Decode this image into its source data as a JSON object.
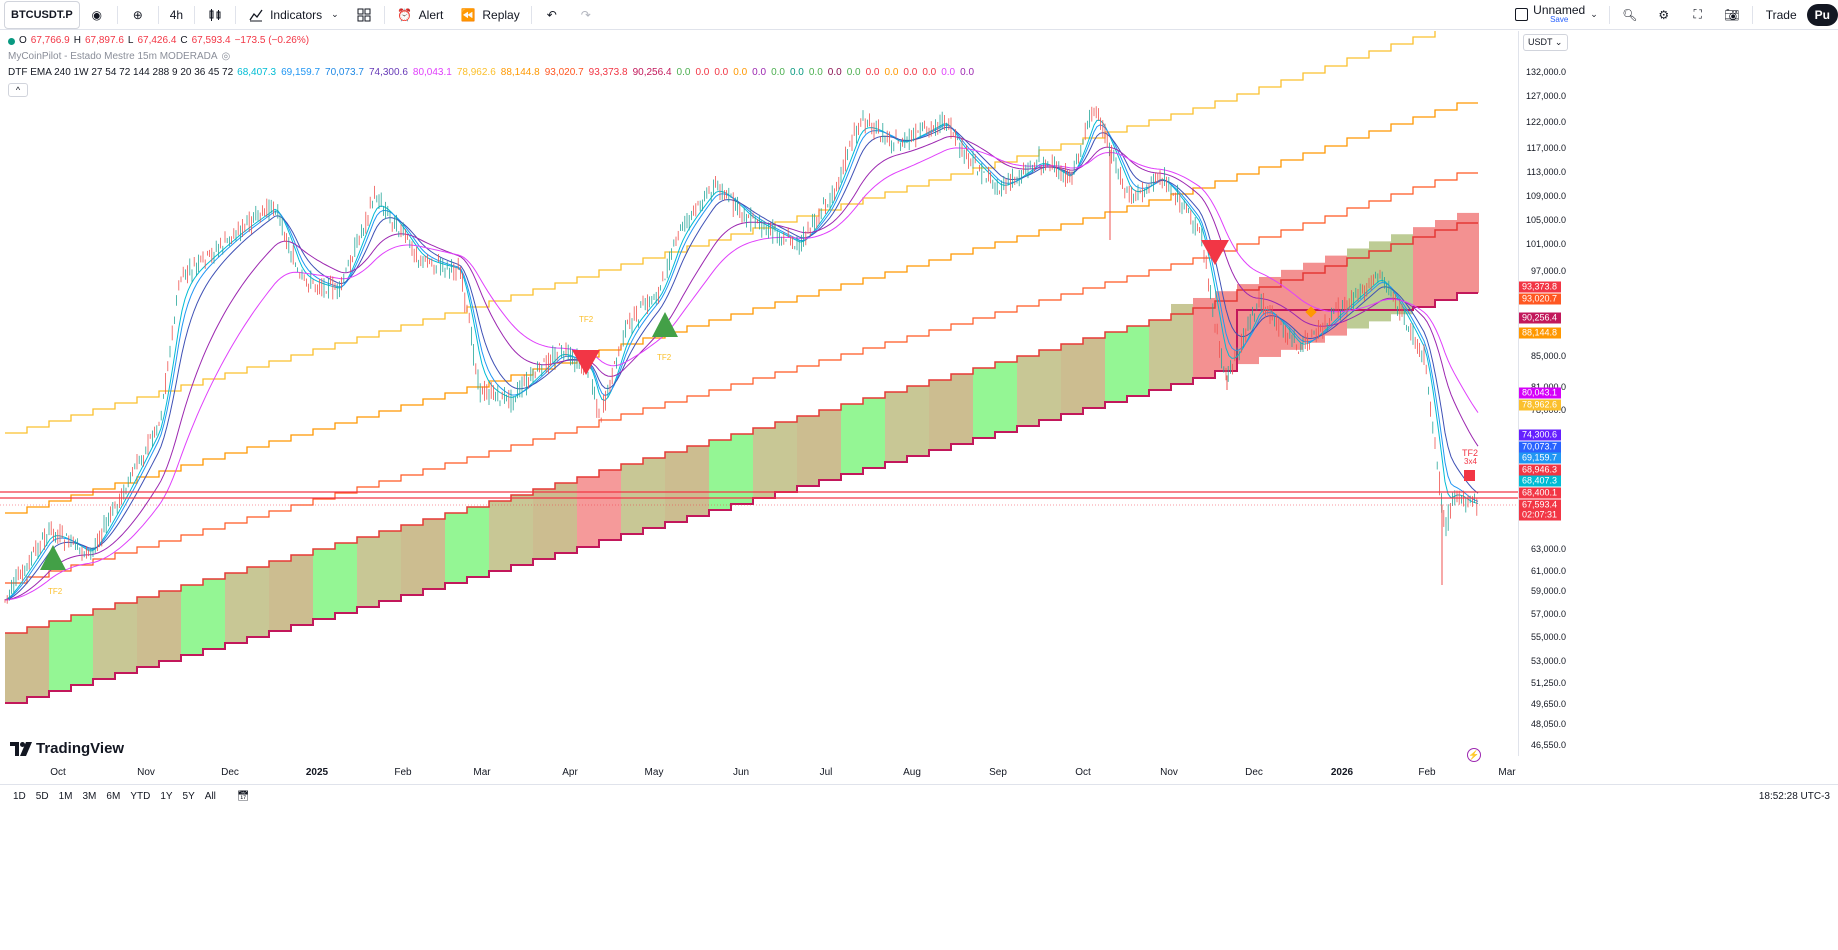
{
  "toolbar": {
    "symbol": "BTCUSDT.P",
    "interval": "4h",
    "indicators_label": "Indicators",
    "alert_label": "Alert",
    "replay_label": "Replay",
    "layout_name": "Unnamed",
    "layout_save": "Save",
    "trade_label": "Trade",
    "publish_label": "Pu"
  },
  "legend": {
    "ohlc": {
      "o_label": "O",
      "o": "67,766.9",
      "h_label": "H",
      "h": "67,897.6",
      "l_label": "L",
      "l": "67,426.4",
      "c_label": "C",
      "c": "67,593.4",
      "change": "−173.5 (−0.26%)"
    },
    "indicator1": "MyCoinPilot - Estado Mestre 15m MODERADA",
    "indicator2_name": "DTF EMA 240 1W 27 54 72 144 288 9 20 36 45 72",
    "indicator2_values": [
      {
        "v": "68,407.3",
        "color": "#00bcd4"
      },
      {
        "v": "69,159.7",
        "color": "#2196f3"
      },
      {
        "v": "70,073.7",
        "color": "#1e88e5"
      },
      {
        "v": "74,300.6",
        "color": "#673ab7"
      },
      {
        "v": "80,043.1",
        "color": "#e040fb"
      },
      {
        "v": "78,962.6",
        "color": "#fbc02d"
      },
      {
        "v": "88,144.8",
        "color": "#ff9800"
      },
      {
        "v": "93,020.7",
        "color": "#ff5722"
      },
      {
        "v": "93,373.8",
        "color": "#f23645"
      },
      {
        "v": "90,256.4",
        "color": "#c2185b"
      },
      {
        "v": "0.0",
        "color": "#4caf50"
      },
      {
        "v": "0.0",
        "color": "#f23645"
      },
      {
        "v": "0.0",
        "color": "#f23645"
      },
      {
        "v": "0.0",
        "color": "#ff9800"
      },
      {
        "v": "0.0",
        "color": "#9c27b0"
      },
      {
        "v": "0.0",
        "color": "#4caf50"
      },
      {
        "v": "0.0",
        "color": "#089981"
      },
      {
        "v": "0.0",
        "color": "#4caf50"
      },
      {
        "v": "0.0",
        "color": "#880e4f"
      },
      {
        "v": "0.0",
        "color": "#4caf50"
      },
      {
        "v": "0.0",
        "color": "#f23645"
      },
      {
        "v": "0.0",
        "color": "#ff9800"
      },
      {
        "v": "0.0",
        "color": "#f23645"
      },
      {
        "v": "0.0",
        "color": "#f23645"
      },
      {
        "v": "0.0",
        "color": "#e040fb"
      },
      {
        "v": "0.0",
        "color": "#9c27b0"
      }
    ]
  },
  "price_axis": {
    "currency": "USDT",
    "ticks": [
      "132,000.0",
      "127,000.0",
      "122,000.0",
      "117,000.0",
      "113,000.0",
      "109,000.0",
      "105,000.0",
      "101,000.0",
      "97,000.0",
      "85,000.0",
      "81,000.0",
      "78,000.0",
      "63,000.0",
      "61,000.0",
      "59,000.0",
      "57,000.0",
      "55,000.0",
      "53,000.0",
      "51,250.0",
      "49,650.0",
      "48,050.0",
      "46,550.0"
    ],
    "badges": [
      {
        "v": "93,373.8",
        "color": "#f23645"
      },
      {
        "v": "93,020.7",
        "color": "#ff5722"
      },
      {
        "v": "90,256.4",
        "color": "#c2185b"
      },
      {
        "v": "88,144.8",
        "color": "#ff9800"
      },
      {
        "v": "80,043.1",
        "color": "#d500f9"
      },
      {
        "v": "78,962.6",
        "color": "#fbc02d"
      },
      {
        "v": "74,300.6",
        "color": "#651fff"
      },
      {
        "v": "70,073.7",
        "color": "#2962ff"
      },
      {
        "v": "69,159.7",
        "color": "#2196f3"
      },
      {
        "v": "68,946.3",
        "color": "#f23645"
      },
      {
        "v": "68,407.3",
        "color": "#00bcd4"
      },
      {
        "v": "68,400.1",
        "color": "#f23645"
      },
      {
        "v": "67,593.4",
        "color": "#f23645"
      },
      {
        "v": "02:07:31",
        "color": "#f23645"
      }
    ]
  },
  "time_axis": {
    "labels": [
      "Oct",
      "Nov",
      "Dec",
      "2025",
      "Feb",
      "Mar",
      "Apr",
      "May",
      "Jun",
      "Jul",
      "Aug",
      "Sep",
      "Oct",
      "Nov",
      "Dec",
      "2026",
      "Feb",
      "Mar"
    ]
  },
  "annotations": {
    "tf2": "TF2",
    "tf2_sub": "3x4"
  },
  "branding": "TradingView",
  "bottom": {
    "ranges": [
      "1D",
      "5D",
      "1M",
      "3M",
      "6M",
      "YTD",
      "1Y",
      "5Y",
      "All"
    ],
    "clock": "18:52:28 UTC-3"
  },
  "chart_data": {
    "type": "line",
    "title": "",
    "series": [
      {
        "name": "BTCUSDT.P",
        "x": [
          "Oct",
          "Nov",
          "Dec",
          "2025",
          "Feb",
          "Mar",
          "Apr",
          "May",
          "Jun",
          "Jul",
          "Aug",
          "Sep",
          "Oct",
          "Nov",
          "Dec",
          "2026",
          "Feb",
          "Mar"
        ],
        "values": [
          62000,
          69000,
          97000,
          95000,
          100000,
          84000,
          80000,
          95000,
          105000,
          117000,
          117000,
          109000,
          122000,
          105000,
          88000,
          90000,
          76000,
          67593
        ]
      }
    ],
    "ylim": [
      46550,
      132000
    ],
    "ylabel": "",
    "xlabel": ""
  }
}
